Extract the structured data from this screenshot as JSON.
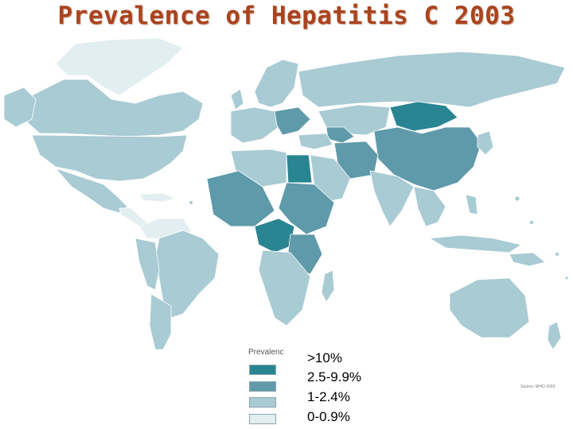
{
  "title": "Prevalence of Hepatitis C 2003",
  "legend": {
    "title": "Prevalenc",
    "items": [
      {
        "label": ">10%",
        "color": "#2a8592"
      },
      {
        "label": "2.5-9.9%",
        "color": "#5f9aaa"
      },
      {
        "label": "1-2.4%",
        "color": "#a9cbd3"
      },
      {
        "label": "0-0.9%",
        "color": "#e3eef0"
      }
    ]
  },
  "source": "Source: WHO 2003",
  "colors": {
    "very_high": "#2a8592",
    "high": "#5f9aaa",
    "moderate": "#a9cbd3",
    "low": "#e3eef0",
    "title": "#a94420"
  }
}
